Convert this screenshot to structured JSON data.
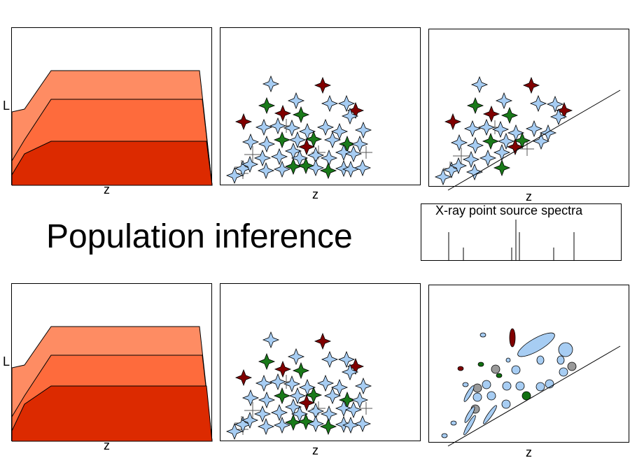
{
  "title": "Population inference",
  "labels": {
    "z": "z",
    "L": "L"
  },
  "spectra": {
    "title": "X-ray point source spectra"
  },
  "colors": {
    "layer_light": "#fe8c63",
    "layer_mid": "#fe6b3c",
    "layer_dark": "#dc2a00",
    "star_blue": "#a7cdf3",
    "star_red": "#800000",
    "star_green": "#1a7a1a",
    "ellipse_blue": "#a7cdf3",
    "ellipse_gray": "#9a9a9a",
    "ellipse_green": "#107010",
    "ellipse_red": "#800000"
  }
}
